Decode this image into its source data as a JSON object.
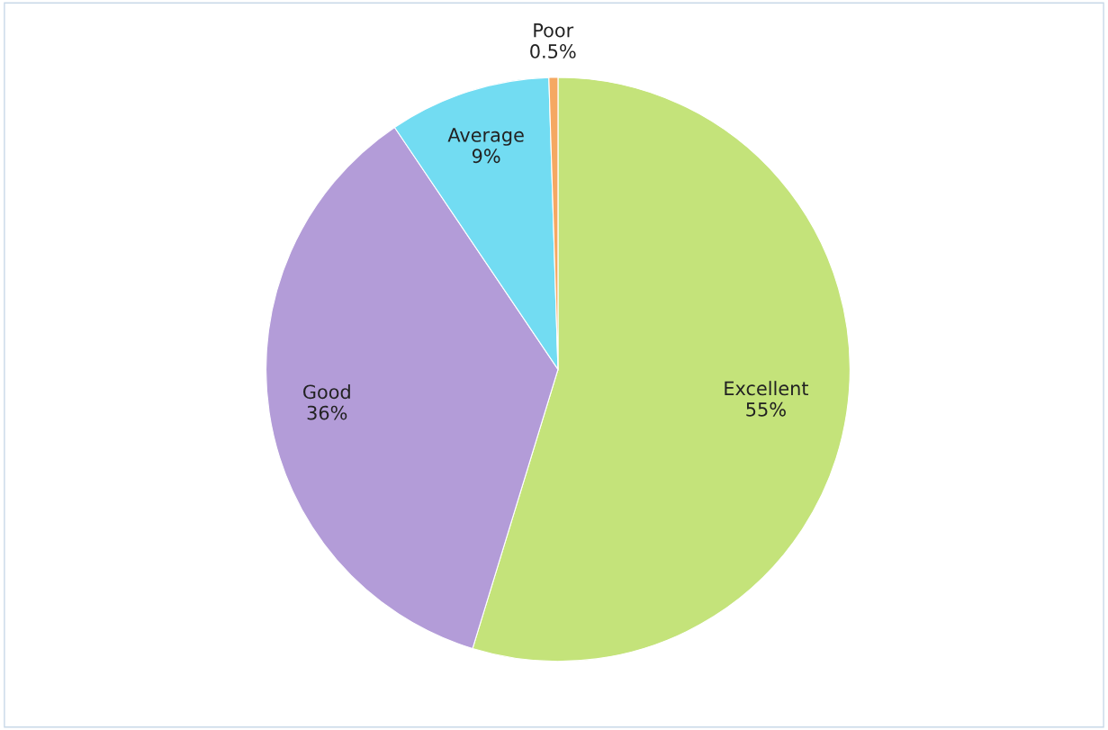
{
  "chart_data": {
    "type": "pie",
    "categories": [
      "Excellent",
      "Good",
      "Average",
      "Poor"
    ],
    "values": [
      55,
      36,
      9,
      0.5
    ],
    "colors": [
      "#c4e37a",
      "#b39cd8",
      "#72dcf2",
      "#f5a862"
    ],
    "value_labels": [
      "55%",
      "36%",
      "9%",
      "0.5%"
    ]
  }
}
